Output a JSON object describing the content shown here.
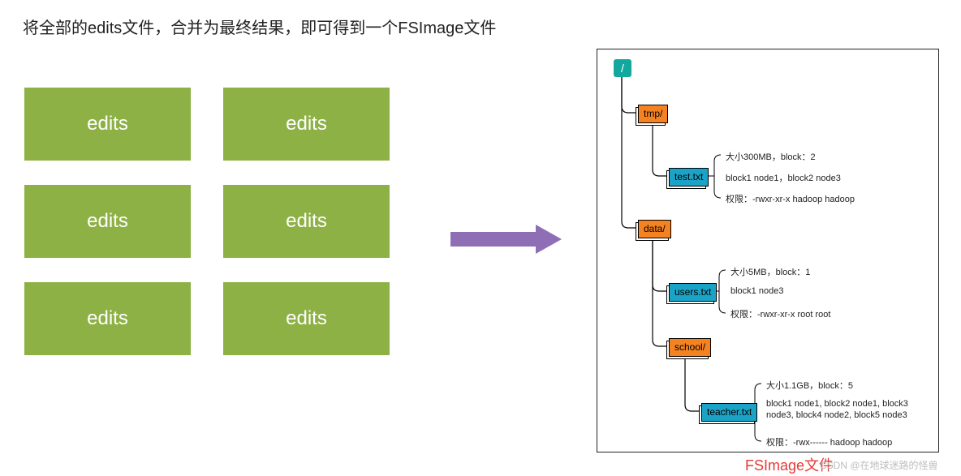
{
  "title": "将全部的edits文件，合并为最终结果，即可得到一个FSImage文件",
  "edits": {
    "label": "edits",
    "box_color": "#8eb146",
    "text_color": "#ffffff",
    "count": 6
  },
  "arrow": {
    "color": "#8e6fb6"
  },
  "tree_panel": {
    "border_color": "#222222",
    "background": "#ffffff"
  },
  "colors": {
    "root_bg": "#13a89e",
    "folder_bg": "#f58220",
    "folder_text": "#000000",
    "file_bg": "#1aa3c6",
    "file_text": "#000000",
    "node_border": "#000000",
    "connector": "#000000",
    "info_text": "#222222"
  },
  "tree": {
    "root": {
      "label": "/"
    },
    "tmp": {
      "label": "tmp/",
      "file": {
        "label": "test.txt",
        "size": "大小300MB，block：2",
        "blocks": "block1 node1，block2 node3",
        "perm": "权限：-rwxr-xr-x hadoop hadoop"
      }
    },
    "data": {
      "label": "data/",
      "file": {
        "label": "users.txt",
        "size": "大小5MB，block：1",
        "blocks": "block1 node3",
        "perm": "权限：-rwxr-xr-x root root"
      },
      "school": {
        "label": "school/",
        "file": {
          "label": "teacher.txt",
          "size": "大小1.1GB，block：5",
          "blocks": "block1 node1, block2 node1, block3 node3, block4 node2, block5 node3",
          "perm": "权限：-rwx------ hadoop hadoop"
        }
      }
    }
  },
  "fsimage_label": {
    "text": "FSImage文件",
    "color": "#e53935"
  },
  "watermark": "CSDN @在地球迷路的怪兽"
}
